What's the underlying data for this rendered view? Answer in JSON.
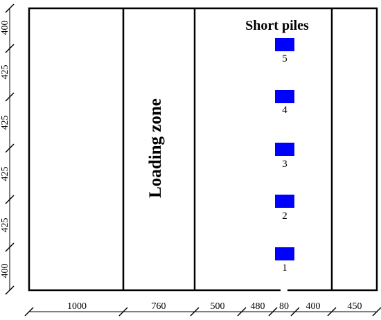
{
  "diagram": {
    "title": "Short piles",
    "zone_label": "Loading zone",
    "piles": [
      {
        "label": "1"
      },
      {
        "label": "2"
      },
      {
        "label": "3"
      },
      {
        "label": "4"
      },
      {
        "label": "5"
      }
    ],
    "horizontal_dimensions": [
      "1000",
      "760",
      "500",
      "480",
      "80",
      "400",
      "450"
    ],
    "vertical_dimensions": [
      "400",
      "425",
      "425",
      "425",
      "425",
      "400"
    ],
    "colors": {
      "pile_fill": "#0000ff",
      "line": "#000000",
      "background": "#ffffff"
    }
  }
}
